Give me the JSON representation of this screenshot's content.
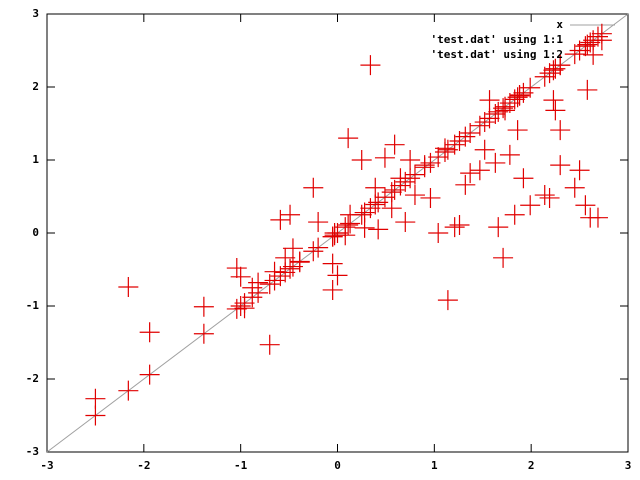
{
  "chart_data": {
    "type": "scatter",
    "x": [
      -2.5,
      -2.16,
      -1.94,
      -1.38,
      -1.04,
      -0.96,
      -1.0,
      -0.88,
      -0.82,
      -0.7,
      -0.65,
      -0.59,
      -0.54,
      -0.49,
      -0.46,
      -0.39,
      -0.25,
      -0.2,
      -0.05,
      -0.05,
      0.0,
      -0.03,
      0.08,
      0.11,
      0.13,
      0.25,
      0.28,
      0.34,
      0.39,
      0.42,
      0.49,
      0.56,
      0.59,
      0.65,
      0.7,
      0.75,
      0.8,
      0.9,
      0.96,
      1.04,
      1.11,
      1.14,
      1.21,
      1.26,
      1.32,
      1.37,
      1.47,
      1.52,
      1.57,
      1.63,
      1.66,
      1.71,
      1.73,
      1.78,
      1.83,
      1.86,
      1.88,
      1.92,
      1.99,
      2.14,
      2.19,
      2.23,
      2.25,
      2.3,
      2.3,
      2.45,
      2.5,
      2.56,
      2.58,
      2.61,
      2.64,
      2.69,
      2.73
    ],
    "series": [
      {
        "name": "x",
        "color": "#a0a0a0",
        "kind": "line",
        "x": [
          -3,
          3
        ],
        "values": [
          -3,
          3
        ]
      },
      {
        "name": "'test.dat' using 1:1",
        "color": "#e00000",
        "kind": "points",
        "values": [
          -2.5,
          -2.16,
          -1.94,
          -1.38,
          -1.04,
          -0.96,
          -1.0,
          -0.88,
          -0.82,
          -0.7,
          -0.65,
          -0.59,
          -0.54,
          -0.49,
          -0.46,
          -0.39,
          -0.25,
          -0.2,
          -0.05,
          -0.05,
          0.0,
          -0.03,
          0.08,
          0.11,
          0.13,
          0.25,
          0.28,
          0.34,
          0.39,
          0.42,
          0.49,
          0.56,
          0.59,
          0.65,
          0.7,
          0.75,
          0.8,
          0.9,
          0.96,
          1.04,
          1.11,
          1.14,
          1.21,
          1.26,
          1.32,
          1.37,
          1.47,
          1.52,
          1.57,
          1.63,
          1.66,
          1.71,
          1.73,
          1.78,
          1.83,
          1.86,
          1.88,
          1.92,
          1.99,
          2.14,
          2.19,
          2.23,
          2.25,
          2.3,
          2.3,
          2.45,
          2.5,
          2.56,
          2.58,
          2.61,
          2.64,
          2.69,
          2.73
        ]
      },
      {
        "name": "'test.dat' using 1:2",
        "color": "#e00000",
        "kind": "points",
        "values": [
          -2.27,
          -0.74,
          -1.36,
          -1.01,
          -0.48,
          -1.03,
          -0.6,
          -0.75,
          -0.68,
          -1.53,
          -0.53,
          0.18,
          -0.34,
          0.25,
          -0.21,
          -0.4,
          0.62,
          0.15,
          -0.42,
          -0.78,
          -0.58,
          0.0,
          -0.03,
          1.3,
          0.25,
          1.0,
          0.07,
          2.3,
          0.62,
          0.05,
          1.03,
          0.34,
          1.21,
          0.75,
          0.15,
          1.0,
          0.52,
          0.93,
          0.48,
          0.0,
          1.16,
          -0.92,
          0.08,
          0.11,
          0.66,
          0.82,
          0.86,
          1.14,
          1.82,
          0.96,
          0.08,
          -0.34,
          1.68,
          1.07,
          0.25,
          1.41,
          1.89,
          0.75,
          0.38,
          0.52,
          0.48,
          1.82,
          1.68,
          1.41,
          0.93,
          0.62,
          0.86,
          0.38,
          1.96,
          0.21,
          2.44,
          0.21,
          2.64
        ]
      }
    ],
    "xlim": [
      -3,
      3
    ],
    "ylim": [
      -3,
      3
    ],
    "xticks": [
      -3,
      -2,
      -1,
      0,
      1,
      2,
      3
    ],
    "yticks": [
      -3,
      -2,
      -1,
      0,
      1,
      2,
      3
    ],
    "grid": false,
    "legend": "top-right"
  }
}
